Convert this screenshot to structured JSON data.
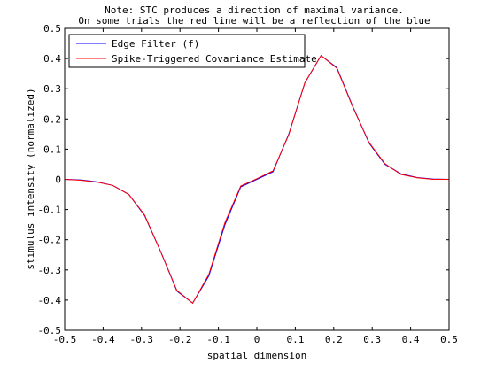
{
  "chart_data": {
    "type": "line",
    "title": [
      "Note: STC produces a direction of maximal variance.",
      "On some trials the red line will be a reflection of the blue"
    ],
    "xlabel": "spatial dimension",
    "ylabel": "stimulus intensity (normalized)",
    "xlim": [
      -0.5,
      0.5
    ],
    "ylim": [
      -0.5,
      0.5
    ],
    "xticks": [
      "-0.5",
      "-0.4",
      "-0.3",
      "-0.2",
      "-0.1",
      "0",
      "0.1",
      "0.2",
      "0.3",
      "0.4",
      "0.5"
    ],
    "yticks": [
      "0.5",
      "0.4",
      "0.3",
      "0.2",
      "0.1",
      "0",
      "-0.1",
      "-0.2",
      "-0.3",
      "-0.4",
      "-0.5"
    ],
    "grid": false,
    "legend_placement": "top-left",
    "series": [
      {
        "name": "Edge Filter (f)",
        "color": "#0000ff",
        "x": [
          -0.5,
          -0.458,
          -0.417,
          -0.375,
          -0.333,
          -0.292,
          -0.25,
          -0.208,
          -0.167,
          -0.125,
          -0.083,
          -0.042,
          0.0,
          0.042,
          0.083,
          0.125,
          0.167,
          0.208,
          0.25,
          0.292,
          0.333,
          0.375,
          0.417,
          0.458,
          0.5
        ],
        "y": [
          0.0,
          -0.002,
          -0.008,
          -0.02,
          -0.05,
          -0.12,
          -0.24,
          -0.37,
          -0.41,
          -0.32,
          -0.15,
          -0.025,
          0.0,
          0.025,
          0.15,
          0.32,
          0.41,
          0.37,
          0.24,
          0.12,
          0.05,
          0.018,
          0.006,
          0.001,
          0.0
        ]
      },
      {
        "name": "Spike-Triggered Covariance Estimate",
        "color": "#ff0000",
        "x": [
          -0.5,
          -0.458,
          -0.417,
          -0.375,
          -0.333,
          -0.292,
          -0.25,
          -0.208,
          -0.167,
          -0.125,
          -0.083,
          -0.042,
          0.0,
          0.042,
          0.083,
          0.125,
          0.167,
          0.208,
          0.25,
          0.292,
          0.333,
          0.375,
          0.417,
          0.458,
          0.5
        ],
        "y": [
          0.0,
          -0.003,
          -0.009,
          -0.02,
          -0.05,
          -0.118,
          -0.24,
          -0.368,
          -0.41,
          -0.315,
          -0.143,
          -0.022,
          0.002,
          0.028,
          0.148,
          0.32,
          0.41,
          0.368,
          0.238,
          0.122,
          0.052,
          0.016,
          0.005,
          0.0,
          0.0
        ]
      }
    ]
  }
}
